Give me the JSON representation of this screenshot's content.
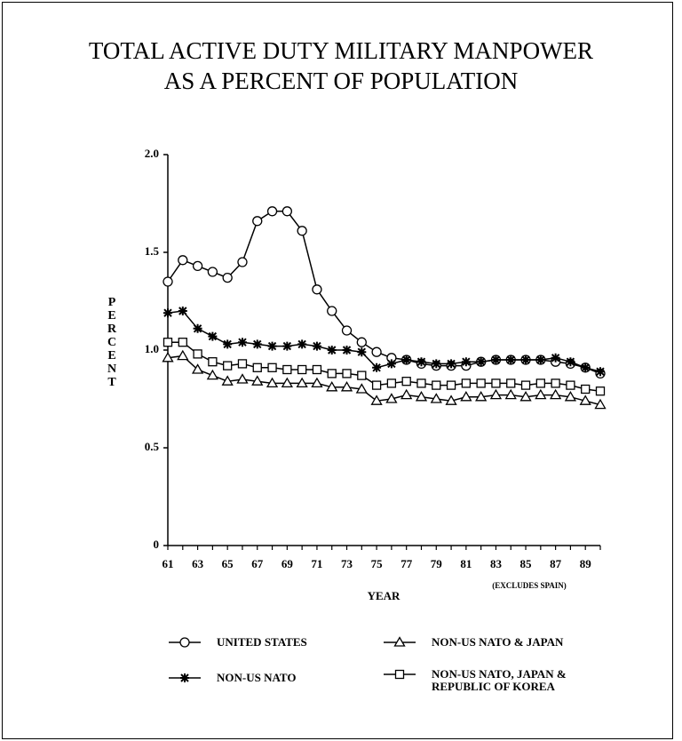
{
  "chart_data": {
    "type": "line",
    "title": [
      "TOTAL ACTIVE DUTY MILITARY MANPOWER",
      "AS A PERCENT OF POPULATION"
    ],
    "x_label": "YEAR",
    "y_label": "PERCENT",
    "annotation": "(EXCLUDES SPAIN)",
    "x": [
      61,
      62,
      63,
      64,
      65,
      66,
      67,
      68,
      69,
      70,
      71,
      72,
      73,
      74,
      75,
      76,
      77,
      78,
      79,
      80,
      81,
      82,
      83,
      84,
      85,
      86,
      87,
      88,
      89,
      90
    ],
    "xlim": [
      61,
      90
    ],
    "xticks": [
      61,
      63,
      65,
      67,
      69,
      71,
      73,
      75,
      77,
      79,
      81,
      83,
      85,
      87,
      89
    ],
    "ylim": [
      0,
      2
    ],
    "yticks": [
      0,
      0.5,
      {
        "value": 1,
        "label": "1.0"
      },
      1.5,
      {
        "value": 2,
        "label": "2.0"
      }
    ],
    "grid": false,
    "series": [
      {
        "name": "UNITED STATES",
        "color": "#000000",
        "marker": "circle",
        "values": [
          1.35,
          1.46,
          1.43,
          1.4,
          1.37,
          1.45,
          1.66,
          1.71,
          1.71,
          1.61,
          1.31,
          1.2,
          1.1,
          1.04,
          0.99,
          0.96,
          0.95,
          0.93,
          0.92,
          0.92,
          0.92,
          0.94,
          0.95,
          0.95,
          0.95,
          0.95,
          0.94,
          0.93,
          0.91,
          0.88
        ]
      },
      {
        "name": "NON-US NATO",
        "color": "#000000",
        "marker": "star",
        "values": [
          1.19,
          1.2,
          1.11,
          1.07,
          1.03,
          1.04,
          1.03,
          1.02,
          1.02,
          1.03,
          1.02,
          1.0,
          1.0,
          0.99,
          0.91,
          0.93,
          0.95,
          0.94,
          0.93,
          0.93,
          0.94,
          0.94,
          0.95,
          0.95,
          0.95,
          0.95,
          0.96,
          0.94,
          0.91,
          0.89
        ]
      },
      {
        "name": "NON-US NATO & JAPAN",
        "color": "#000000",
        "marker": "triangle",
        "values": [
          0.96,
          0.97,
          0.9,
          0.87,
          0.84,
          0.85,
          0.84,
          0.83,
          0.83,
          0.83,
          0.83,
          0.81,
          0.81,
          0.8,
          0.74,
          0.75,
          0.77,
          0.76,
          0.75,
          0.74,
          0.76,
          0.76,
          0.77,
          0.77,
          0.76,
          0.77,
          0.77,
          0.76,
          0.74,
          0.72
        ]
      },
      {
        "name": "NON-US NATO, JAPAN & REPUBLIC OF KOREA",
        "color": "#000000",
        "marker": "square",
        "values": [
          1.04,
          1.04,
          0.98,
          0.94,
          0.92,
          0.93,
          0.91,
          0.91,
          0.9,
          0.9,
          0.9,
          0.88,
          0.88,
          0.87,
          0.82,
          0.83,
          0.84,
          0.83,
          0.82,
          0.82,
          0.83,
          0.83,
          0.83,
          0.83,
          0.82,
          0.83,
          0.83,
          0.82,
          0.8,
          0.79
        ]
      }
    ]
  }
}
